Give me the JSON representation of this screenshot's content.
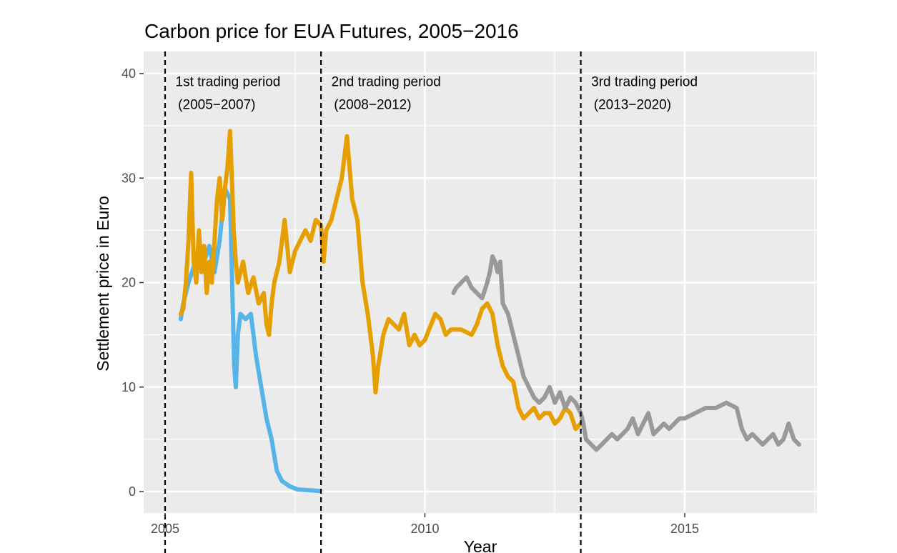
{
  "chart_data": {
    "type": "line",
    "title": "Carbon price for EUA Futures, 2005−2016",
    "xlabel": "Year",
    "ylabel": "Settlement price in Euro",
    "xlim": [
      2005.0,
      2017.3
    ],
    "ylim": [
      -2,
      40
    ],
    "x_ticks": [
      2005,
      2010,
      2015
    ],
    "x_tick_labels": [
      "2005",
      "2010",
      "2015"
    ],
    "x_minor_ticks": [
      2007.5,
      2012.5,
      2017.5
    ],
    "y_ticks": [
      0,
      10,
      20,
      30,
      40
    ],
    "y_tick_labels": [
      "0",
      "10",
      "20",
      "30",
      "40"
    ],
    "grid": true,
    "legend": "none",
    "vlines": [
      2005.0,
      2008.0,
      2013.0
    ],
    "annotations": [
      {
        "x": 2005.2,
        "y": 38.8,
        "text": "1st trading period"
      },
      {
        "x": 2005.25,
        "y": 36.6,
        "text": "(2005−2007)"
      },
      {
        "x": 2008.2,
        "y": 38.8,
        "text": "2nd trading period"
      },
      {
        "x": 2008.25,
        "y": 36.6,
        "text": "(2008−2012)"
      },
      {
        "x": 2013.2,
        "y": 38.8,
        "text": "3rd trading period"
      },
      {
        "x": 2013.25,
        "y": 36.6,
        "text": "(2013−2020)"
      }
    ],
    "series": [
      {
        "color": "#56B4E9",
        "x": [
          2005.3,
          2005.35,
          2005.45,
          2005.55,
          2005.65,
          2005.75,
          2005.85,
          2005.95,
          2006.05,
          2006.15,
          2006.25,
          2006.3,
          2006.33,
          2006.36,
          2006.4,
          2006.45,
          2006.55,
          2006.65,
          2006.75,
          2006.85,
          2006.95,
          2007.05,
          2007.15,
          2007.25,
          2007.4,
          2007.55,
          2007.7,
          2007.85,
          2007.98
        ],
        "y": [
          16.5,
          18.0,
          20.0,
          21.5,
          23.5,
          22.0,
          23.5,
          21.0,
          24.0,
          29.0,
          28.0,
          18.0,
          12.0,
          10.0,
          15.0,
          17.0,
          16.5,
          17.0,
          13.0,
          10.0,
          7.0,
          5.0,
          2.0,
          1.0,
          0.5,
          0.2,
          0.15,
          0.1,
          0.05
        ]
      },
      {
        "color": "#E69F00",
        "x": [
          2005.3,
          2005.35,
          2005.4,
          2005.45,
          2005.5,
          2005.55,
          2005.6,
          2005.65,
          2005.7,
          2005.75,
          2005.8,
          2005.85,
          2005.9,
          2005.95,
          2006.0,
          2006.05,
          2006.1,
          2006.15,
          2006.2,
          2006.25,
          2006.3,
          2006.32,
          2006.36,
          2006.4,
          2006.45,
          2006.5,
          2006.6,
          2006.7,
          2006.8,
          2006.9,
          2006.95,
          2007.0,
          2007.05,
          2007.1,
          2007.2,
          2007.3,
          2007.4,
          2007.5,
          2007.6,
          2007.7,
          2007.8,
          2007.9,
          2008.0,
          2008.05,
          2008.1,
          2008.2,
          2008.3,
          2008.4,
          2008.5,
          2008.55,
          2008.6,
          2008.7,
          2008.8,
          2008.9,
          2009.0,
          2009.05,
          2009.1,
          2009.2,
          2009.3,
          2009.4,
          2009.5,
          2009.6,
          2009.7,
          2009.8,
          2009.9,
          2010.0,
          2010.2,
          2010.3,
          2010.4,
          2010.5,
          2010.7,
          2010.9,
          2011.0,
          2011.1,
          2011.2,
          2011.3,
          2011.4,
          2011.5,
          2011.6,
          2011.7,
          2011.8,
          2011.9,
          2012.0,
          2012.1,
          2012.2,
          2012.3,
          2012.4,
          2012.5,
          2012.6,
          2012.7,
          2012.8,
          2012.9,
          2013.0
        ],
        "y": [
          17.0,
          17.5,
          20.0,
          24.0,
          30.5,
          22.0,
          20.0,
          25.0,
          21.0,
          23.5,
          19.0,
          22.0,
          20.0,
          24.0,
          28.0,
          30.0,
          26.0,
          29.0,
          31.0,
          34.5,
          28.0,
          25.0,
          22.0,
          20.0,
          21.0,
          22.0,
          19.0,
          20.5,
          18.0,
          19.0,
          16.0,
          15.0,
          18.0,
          20.0,
          22.0,
          26.0,
          21.0,
          23.0,
          24.0,
          25.0,
          24.0,
          26.0,
          25.5,
          22.0,
          25.0,
          26.0,
          28.0,
          30.0,
          34.0,
          31.0,
          28.0,
          26.0,
          20.0,
          17.0,
          13.0,
          9.5,
          12.0,
          15.0,
          16.5,
          16.0,
          15.5,
          17.0,
          14.0,
          15.0,
          14.0,
          14.5,
          17.0,
          16.5,
          15.0,
          15.5,
          15.5,
          15.0,
          16.0,
          17.5,
          18.0,
          17.0,
          14.0,
          12.0,
          11.0,
          10.5,
          8.0,
          7.0,
          7.5,
          8.0,
          7.0,
          7.5,
          7.5,
          6.5,
          7.0,
          8.0,
          7.5,
          6.0,
          6.5
        ]
      },
      {
        "color": "#999999",
        "x": [
          2010.55,
          2010.6,
          2010.7,
          2010.8,
          2010.9,
          2011.0,
          2011.1,
          2011.2,
          2011.25,
          2011.3,
          2011.35,
          2011.4,
          2011.45,
          2011.5,
          2011.6,
          2011.7,
          2011.8,
          2011.9,
          2012.0,
          2012.1,
          2012.2,
          2012.3,
          2012.4,
          2012.5,
          2012.6,
          2012.7,
          2012.8,
          2012.9,
          2013.0,
          2013.05,
          2013.1,
          2013.2,
          2013.3,
          2013.4,
          2013.5,
          2013.6,
          2013.7,
          2013.8,
          2013.9,
          2014.0,
          2014.1,
          2014.2,
          2014.3,
          2014.4,
          2014.5,
          2014.6,
          2014.7,
          2014.8,
          2014.9,
          2015.0,
          2015.2,
          2015.4,
          2015.6,
          2015.8,
          2016.0,
          2016.1,
          2016.2,
          2016.3,
          2016.4,
          2016.5,
          2016.6,
          2016.7,
          2016.8,
          2016.9,
          2017.0,
          2017.1,
          2017.2
        ],
        "y": [
          19.0,
          19.5,
          20.0,
          20.5,
          19.5,
          19.0,
          18.5,
          20.0,
          21.0,
          22.5,
          22.0,
          21.0,
          22.0,
          18.0,
          17.0,
          15.0,
          13.0,
          11.0,
          10.0,
          9.0,
          8.5,
          9.0,
          10.0,
          8.5,
          9.5,
          8.0,
          9.0,
          8.5,
          7.5,
          6.5,
          5.0,
          4.5,
          4.0,
          4.5,
          5.0,
          5.5,
          5.0,
          5.5,
          6.0,
          7.0,
          5.5,
          6.5,
          7.5,
          5.5,
          6.0,
          6.5,
          6.0,
          6.5,
          7.0,
          7.0,
          7.5,
          8.0,
          8.0,
          8.5,
          8.0,
          6.0,
          5.0,
          5.5,
          5.0,
          4.5,
          5.0,
          5.5,
          4.5,
          5.0,
          6.5,
          5.0,
          4.5
        ]
      }
    ]
  },
  "colors": {
    "panel": "#EBEBEB",
    "grid": "#FFFFFF",
    "vline": "#000000"
  }
}
